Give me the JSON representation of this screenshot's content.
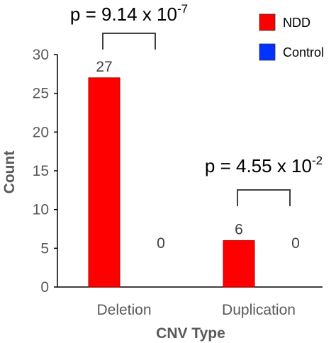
{
  "chart_data": {
    "type": "bar",
    "categories": [
      "Deletion",
      "Duplication"
    ],
    "series": [
      {
        "name": "NDD",
        "values": [
          27,
          6
        ],
        "color": "#ff0000"
      },
      {
        "name": "Control",
        "values": [
          0,
          0
        ],
        "color": "#0033ff"
      }
    ],
    "xlabel": "CNV Type",
    "ylabel": "Count",
    "ylim": [
      0,
      30
    ],
    "yticks": [
      0,
      5,
      10,
      15,
      20,
      25,
      30
    ],
    "grid": false,
    "legend_position": "top-right",
    "annotations": [
      {
        "category": "Deletion",
        "prefix": "p = 9.14 x 10",
        "exponent": "-7"
      },
      {
        "category": "Duplication",
        "prefix": "p = 4.55 x 10",
        "exponent": "-2"
      }
    ]
  }
}
